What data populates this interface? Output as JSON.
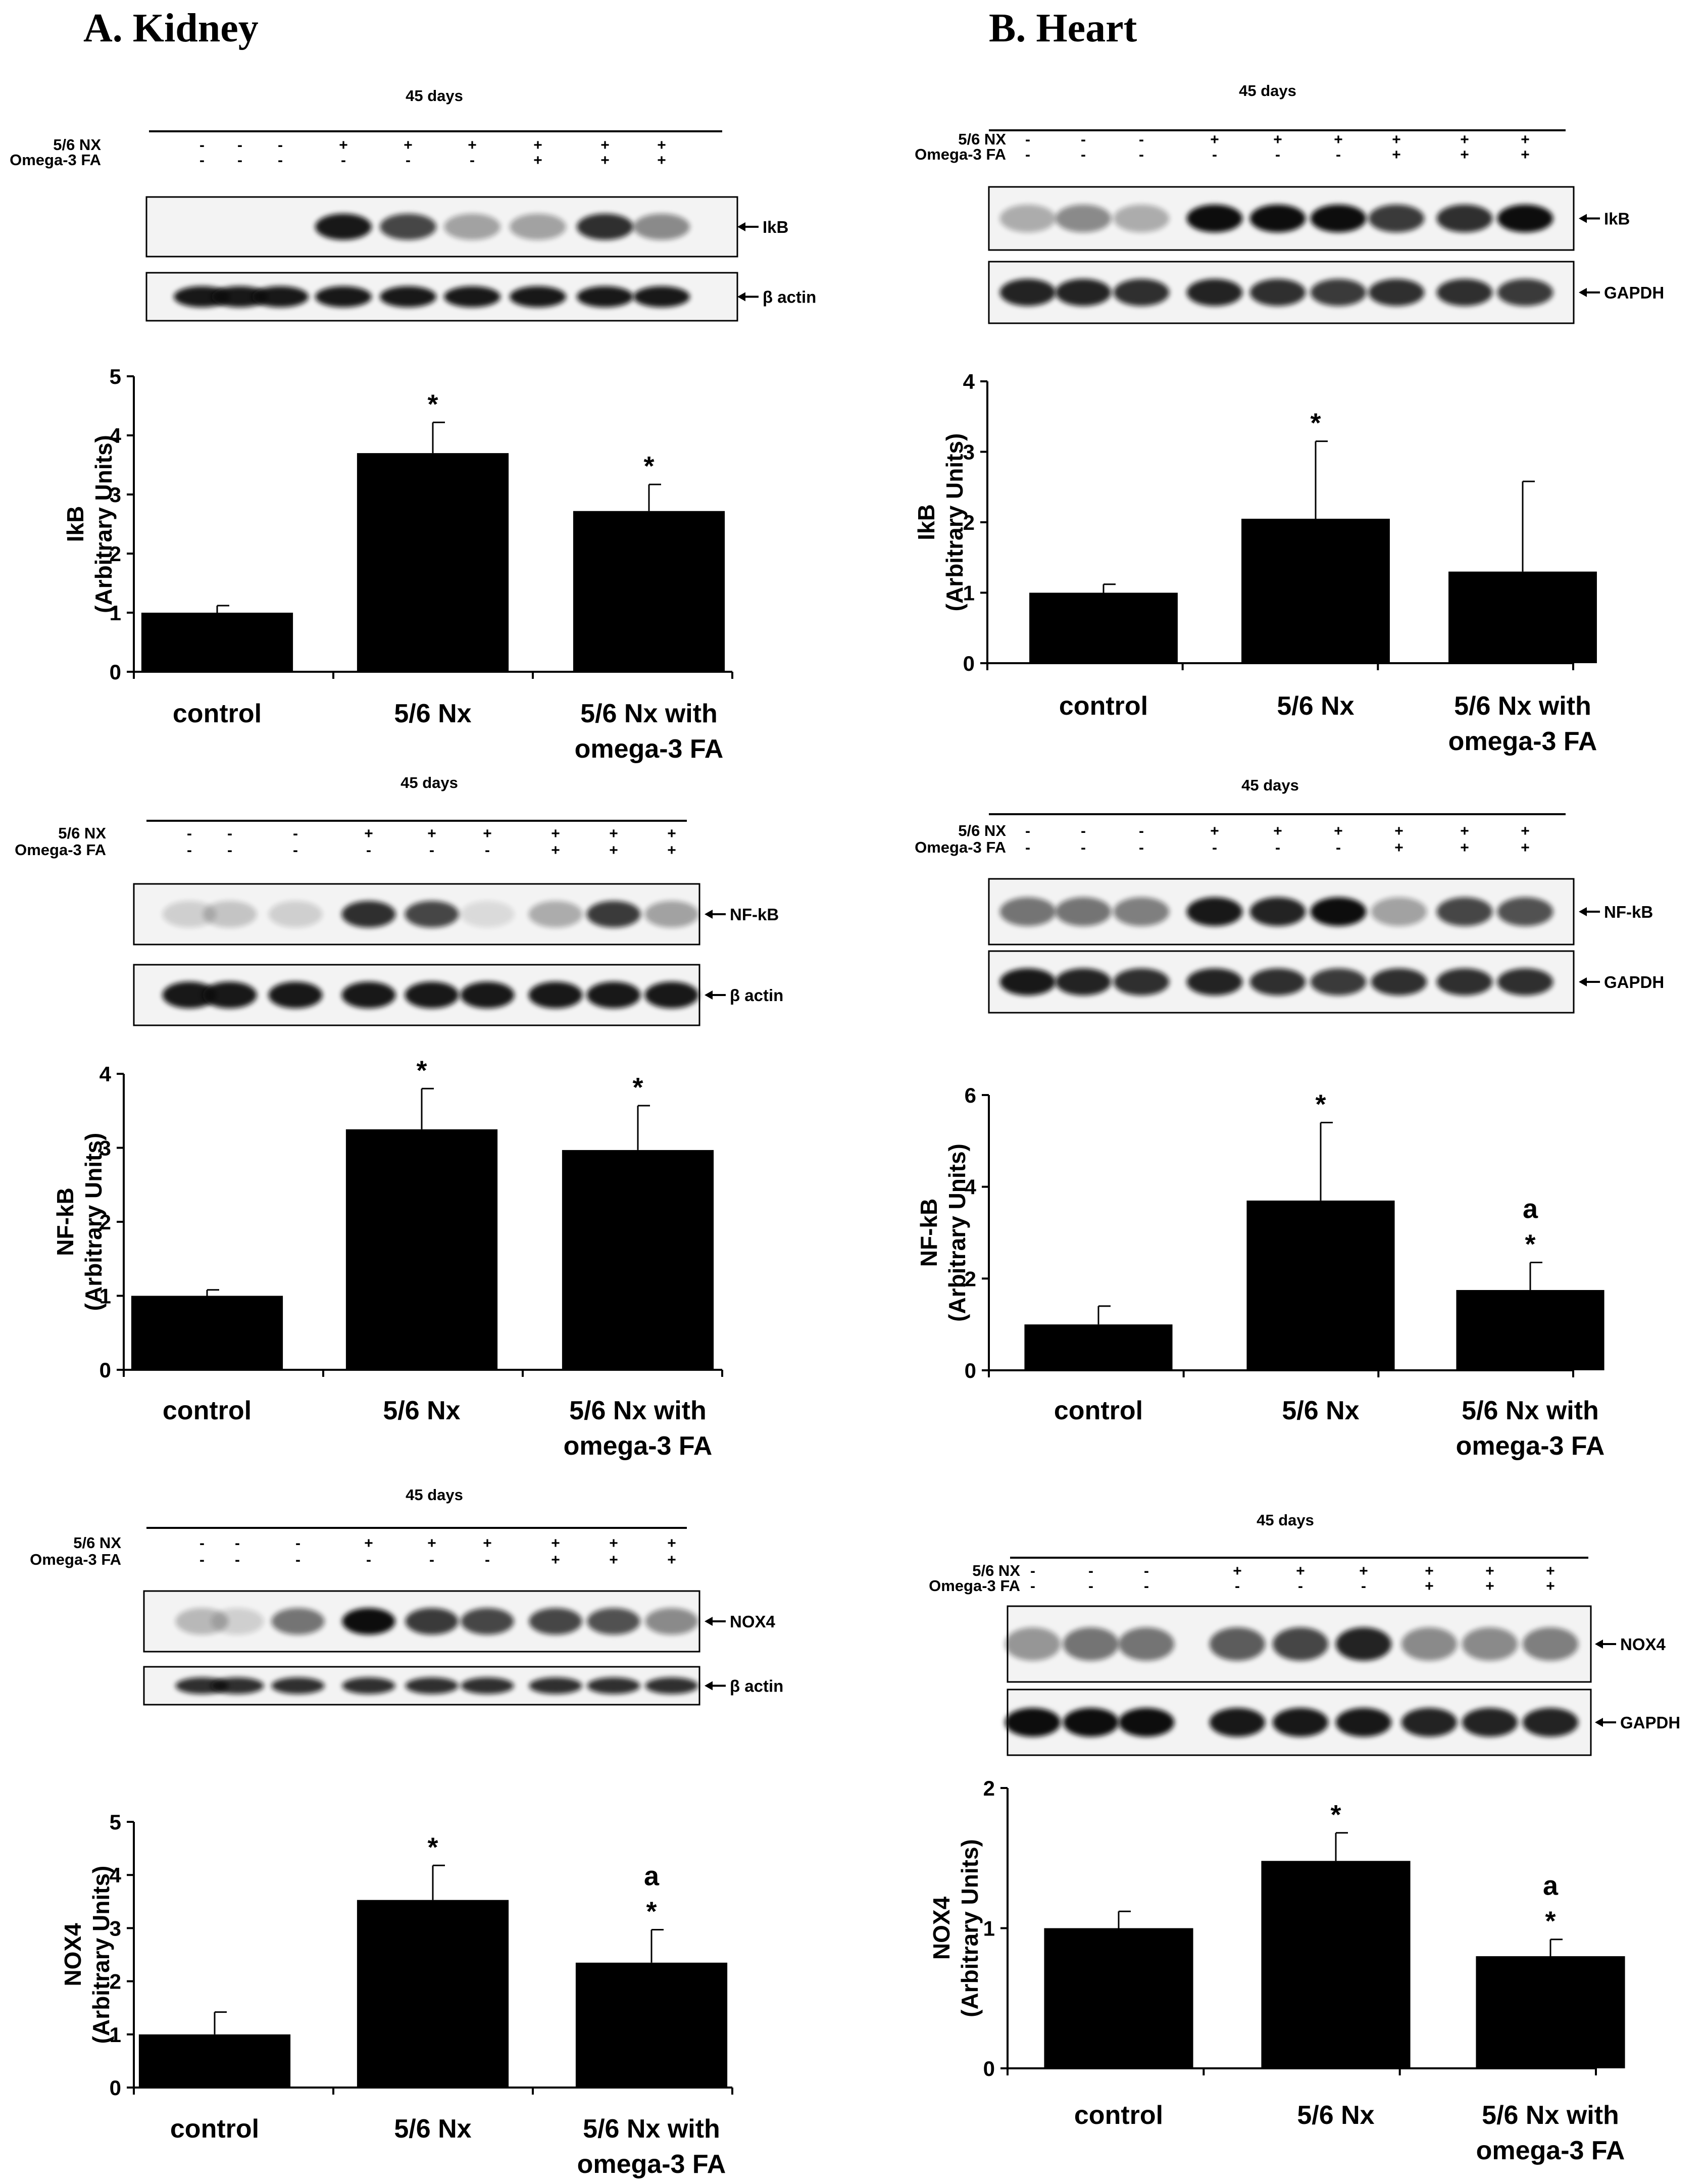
{
  "panels": [
    {
      "title": "A. Kidney"
    },
    {
      "title": "B. Heart"
    }
  ],
  "colors": {
    "bar": "#000000",
    "blot_bg": "#f3f3f3",
    "band": "#111111"
  },
  "chart_data": [
    {
      "type": "bar",
      "panel": "A. Kidney",
      "categories": [
        "control",
        "5/6 Nx",
        "5/6 Nx with\nomega-3 FA"
      ],
      "values": [
        1.0,
        3.7,
        2.72
      ],
      "errors": [
        0.12,
        0.52,
        0.45
      ],
      "annotations": [
        "",
        "*",
        "*"
      ],
      "ylabel": [
        "IkB",
        "(Arbitrary Units)"
      ],
      "ylim": [
        0,
        5
      ],
      "yticks": [
        0,
        1,
        2,
        3,
        4,
        5
      ],
      "grid": false,
      "legend": "none"
    },
    {
      "type": "bar",
      "panel": "B. Heart",
      "categories": [
        "control",
        "5/6 Nx",
        "5/6 Nx with\nomega-3 FA"
      ],
      "values": [
        1.0,
        2.05,
        1.3
      ],
      "errors": [
        0.12,
        1.1,
        1.28
      ],
      "annotations": [
        "",
        "*",
        ""
      ],
      "ylabel": [
        "IkB",
        "(Arbitrary Units)"
      ],
      "ylim": [
        0,
        4
      ],
      "yticks": [
        0,
        1,
        2,
        3,
        4
      ],
      "grid": false,
      "legend": "none"
    },
    {
      "type": "bar",
      "panel": "A. Kidney",
      "categories": [
        "control",
        "5/6 Nx",
        "5/6 Nx with\nomega-3 FA"
      ],
      "values": [
        1.0,
        3.25,
        2.97
      ],
      "errors": [
        0.08,
        0.55,
        0.6
      ],
      "annotations": [
        "",
        "*",
        "*"
      ],
      "ylabel": [
        "NF-kB",
        "(Arbitrary Units)"
      ],
      "ylim": [
        0,
        4
      ],
      "yticks": [
        0,
        1,
        2,
        3,
        4
      ],
      "grid": false,
      "legend": "none"
    },
    {
      "type": "bar",
      "panel": "B. Heart",
      "categories": [
        "control",
        "5/6 Nx",
        "5/6 Nx with\nomega-3 FA"
      ],
      "values": [
        1.0,
        3.7,
        1.75
      ],
      "errors": [
        0.4,
        1.7,
        0.6
      ],
      "annotations": [
        "",
        "*",
        "*"
      ],
      "letters": [
        "",
        "",
        "a"
      ],
      "ylabel": [
        "NF-kB",
        "(Arbitrary Units)"
      ],
      "ylim": [
        0,
        6
      ],
      "yticks": [
        0,
        2,
        4,
        6
      ],
      "grid": false,
      "legend": "none"
    },
    {
      "type": "bar",
      "panel": "A. Kidney",
      "categories": [
        "control",
        "5/6 Nx",
        "5/6 Nx with\nomega-3 FA"
      ],
      "values": [
        1.0,
        3.53,
        2.35
      ],
      "errors": [
        0.42,
        0.65,
        0.62
      ],
      "annotations": [
        "",
        "*",
        "*"
      ],
      "letters": [
        "",
        "",
        "a"
      ],
      "ylabel": [
        "NOX4",
        "(Arbitrary Units)"
      ],
      "ylim": [
        0,
        5
      ],
      "yticks": [
        0,
        1,
        2,
        3,
        4,
        5
      ],
      "grid": false,
      "legend": "none"
    },
    {
      "type": "bar",
      "panel": "B. Heart",
      "categories": [
        "control",
        "5/6 Nx",
        "5/6 Nx with\nomega-3 FA"
      ],
      "values": [
        1.0,
        1.48,
        0.8
      ],
      "errors": [
        0.12,
        0.2,
        0.12
      ],
      "annotations": [
        "",
        "*",
        "*"
      ],
      "letters": [
        "",
        "",
        "a"
      ],
      "ylabel": [
        "NOX4",
        "(Arbitrary Units)"
      ],
      "ylim": [
        0,
        2
      ],
      "yticks": [
        0,
        1,
        2
      ],
      "grid": false,
      "legend": "none"
    }
  ],
  "blots": [
    {
      "panel": "A. Kidney",
      "days_label": "45 days",
      "row1_label": "5/6 NX",
      "row2_label": "Omega-3 FA",
      "nx_signs": [
        "-",
        "-",
        "-",
        "+",
        "+",
        "+",
        "+",
        "+",
        "+"
      ],
      "fa_signs": [
        "-",
        "-",
        "-",
        "-",
        "-",
        "-",
        "+",
        "+",
        "+"
      ],
      "target_label": "IkB",
      "target_intensity": [
        0,
        0,
        0,
        0.95,
        0.75,
        0.35,
        0.35,
        0.85,
        0.45
      ],
      "loading_label": "β actin",
      "loading_intensity": [
        0.95,
        0.95,
        0.95,
        0.95,
        0.95,
        0.95,
        0.95,
        0.95,
        0.95
      ]
    },
    {
      "panel": "B. Heart",
      "days_label": "45 days",
      "row1_label": "5/6 NX",
      "row2_label": "Omega-3 FA",
      "nx_signs": [
        "-",
        "-",
        "-",
        "+",
        "+",
        "+",
        "+",
        "+",
        "+"
      ],
      "fa_signs": [
        "-",
        "-",
        "-",
        "-",
        "-",
        "-",
        "+",
        "+",
        "+"
      ],
      "target_label": "IkB",
      "target_intensity": [
        0.3,
        0.45,
        0.3,
        1.0,
        1.0,
        1.0,
        0.8,
        0.85,
        1.0
      ],
      "loading_label": "GAPDH",
      "loading_intensity": [
        0.9,
        0.9,
        0.85,
        0.9,
        0.85,
        0.8,
        0.85,
        0.85,
        0.8
      ]
    },
    {
      "panel": "A. Kidney",
      "days_label": "45 days",
      "row1_label": "5/6 NX",
      "row2_label": "Omega-3 FA",
      "nx_signs": [
        "-",
        "-",
        "-",
        "+",
        "+",
        "+",
        "+",
        "+",
        "+"
      ],
      "fa_signs": [
        "-",
        "-",
        "-",
        "-",
        "-",
        "-",
        "+",
        "+",
        "+"
      ],
      "target_label": "NF-kB",
      "target_intensity": [
        0.15,
        0.2,
        0.15,
        0.85,
        0.75,
        0.1,
        0.3,
        0.8,
        0.35
      ],
      "loading_label": "β actin",
      "loading_intensity": [
        0.95,
        0.95,
        0.95,
        0.95,
        0.95,
        0.95,
        0.95,
        0.95,
        0.95
      ]
    },
    {
      "panel": "B. Heart",
      "days_label": "45 days",
      "row1_label": "5/6 NX",
      "row2_label": "Omega-3 FA",
      "nx_signs": [
        "-",
        "-",
        "-",
        "+",
        "+",
        "+",
        "+",
        "+",
        "+"
      ],
      "fa_signs": [
        "-",
        "-",
        "-",
        "-",
        "-",
        "-",
        "+",
        "+",
        "+"
      ],
      "target_label": "NF-kB",
      "target_intensity": [
        0.55,
        0.55,
        0.5,
        0.95,
        0.9,
        1.0,
        0.35,
        0.75,
        0.7
      ],
      "loading_label": "GAPDH",
      "loading_intensity": [
        0.95,
        0.9,
        0.85,
        0.9,
        0.85,
        0.8,
        0.85,
        0.85,
        0.85
      ]
    },
    {
      "panel": "A. Kidney",
      "days_label": "45 days",
      "row1_label": "5/6 NX",
      "row2_label": "Omega-3 FA",
      "nx_signs": [
        "-",
        "-",
        "-",
        "+",
        "+",
        "+",
        "+",
        "+",
        "+"
      ],
      "fa_signs": [
        "-",
        "-",
        "-",
        "-",
        "-",
        "-",
        "+",
        "+",
        "+"
      ],
      "target_label": "NOX4",
      "target_intensity": [
        0.25,
        0.15,
        0.55,
        1.0,
        0.8,
        0.75,
        0.75,
        0.7,
        0.45
      ],
      "loading_label": "β actin",
      "loading_intensity": [
        0.85,
        0.85,
        0.85,
        0.85,
        0.85,
        0.85,
        0.85,
        0.85,
        0.85
      ]
    },
    {
      "panel": "B. Heart",
      "days_label": "45 days",
      "row1_label": "5/6 NX",
      "row2_label": "Omega-3 FA",
      "nx_signs": [
        "-",
        "-",
        "-",
        "+",
        "+",
        "+",
        "+",
        "+",
        "+"
      ],
      "fa_signs": [
        "-",
        "-",
        "-",
        "-",
        "-",
        "-",
        "+",
        "+",
        "+"
      ],
      "target_label": "NOX4",
      "target_intensity": [
        0.4,
        0.55,
        0.55,
        0.65,
        0.75,
        0.9,
        0.45,
        0.45,
        0.5
      ],
      "loading_label": "GAPDH",
      "loading_intensity": [
        1.0,
        1.0,
        1.0,
        0.95,
        0.95,
        0.95,
        0.9,
        0.9,
        0.9
      ]
    }
  ]
}
